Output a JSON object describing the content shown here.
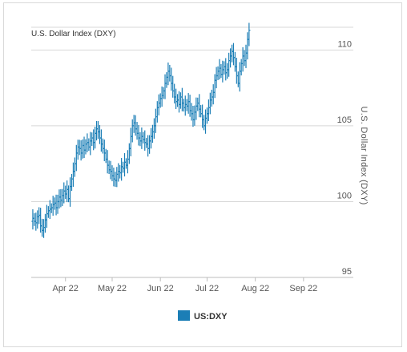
{
  "chart_data": {
    "type": "ohlc",
    "title": "U.S. Dollar Index (DXY)",
    "ylabel": "U.S. Dollar Index (DXY)",
    "xlabel": "",
    "ylim": [
      95,
      111.5
    ],
    "y_ticks": [
      95,
      100,
      105,
      110
    ],
    "x_ticks": [
      {
        "label": "Apr 22",
        "day": 22
      },
      {
        "label": "May 22",
        "day": 52
      },
      {
        "label": "Jun 22",
        "day": 83
      },
      {
        "label": "Jul 22",
        "day": 113
      },
      {
        "label": "Aug 22",
        "day": 144
      },
      {
        "label": "Sep 22",
        "day": 175
      }
    ],
    "x_range": [
      0,
      207
    ],
    "color": "#1b7eb6",
    "legend": {
      "label": "US:DXY",
      "position": "bottom-center"
    },
    "grid": true,
    "series": [
      {
        "name": "US:DXY",
        "points": [
          [
            1,
            98.9
          ],
          [
            2,
            98.7
          ],
          [
            3,
            98.6
          ],
          [
            4,
            99.0
          ],
          [
            5,
            99.1
          ],
          [
            6,
            98.4
          ],
          [
            7,
            98.1
          ],
          [
            8,
            98.3
          ],
          [
            9,
            98.8
          ],
          [
            10,
            99.2
          ],
          [
            11,
            99.4
          ],
          [
            12,
            99.5
          ],
          [
            13,
            99.6
          ],
          [
            14,
            99.8
          ],
          [
            15,
            99.9
          ],
          [
            16,
            99.6
          ],
          [
            17,
            100.0
          ],
          [
            18,
            100.3
          ],
          [
            19,
            100.1
          ],
          [
            20,
            100.4
          ],
          [
            21,
            100.7
          ],
          [
            22,
            100.5
          ],
          [
            23,
            100.8
          ],
          [
            24,
            100.2
          ],
          [
            25,
            101.0
          ],
          [
            26,
            101.5
          ],
          [
            27,
            102.0
          ],
          [
            28,
            102.5
          ],
          [
            29,
            103.2
          ],
          [
            30,
            103.6
          ],
          [
            31,
            103.5
          ],
          [
            32,
            103.2
          ],
          [
            33,
            103.7
          ],
          [
            34,
            103.4
          ],
          [
            35,
            103.8
          ],
          [
            36,
            103.9
          ],
          [
            37,
            103.6
          ],
          [
            38,
            104.0
          ],
          [
            39,
            104.2
          ],
          [
            40,
            103.9
          ],
          [
            41,
            104.5
          ],
          [
            42,
            104.8
          ],
          [
            43,
            104.6
          ],
          [
            44,
            104.2
          ],
          [
            45,
            103.8
          ],
          [
            46,
            103.5
          ],
          [
            47,
            103.2
          ],
          [
            48,
            102.8
          ],
          [
            49,
            102.4
          ],
          [
            50,
            102.1
          ],
          [
            51,
            102.0
          ],
          [
            52,
            101.7
          ],
          [
            53,
            101.5
          ],
          [
            54,
            101.4
          ],
          [
            55,
            101.8
          ],
          [
            56,
            102.0
          ],
          [
            57,
            101.9
          ],
          [
            58,
            102.3
          ],
          [
            59,
            102.2
          ],
          [
            60,
            102.6
          ],
          [
            61,
            102.4
          ],
          [
            62,
            102.8
          ],
          [
            63,
            103.5
          ],
          [
            64,
            104.3
          ],
          [
            65,
            105.0
          ],
          [
            66,
            105.2
          ],
          [
            67,
            104.8
          ],
          [
            68,
            104.5
          ],
          [
            69,
            104.2
          ],
          [
            70,
            104.0
          ],
          [
            71,
            104.3
          ],
          [
            72,
            104.1
          ],
          [
            73,
            103.9
          ],
          [
            74,
            103.8
          ],
          [
            75,
            103.5
          ],
          [
            76,
            104.0
          ],
          [
            77,
            104.3
          ],
          [
            78,
            104.6
          ],
          [
            79,
            105.0
          ],
          [
            80,
            105.6
          ],
          [
            81,
            106.2
          ],
          [
            82,
            106.5
          ],
          [
            83,
            106.8
          ],
          [
            84,
            107.0
          ],
          [
            85,
            107.3
          ],
          [
            86,
            107.8
          ],
          [
            87,
            108.2
          ],
          [
            88,
            108.6
          ],
          [
            89,
            108.3
          ],
          [
            90,
            107.8
          ],
          [
            91,
            107.3
          ],
          [
            92,
            106.9
          ],
          [
            93,
            106.6
          ],
          [
            94,
            106.7
          ],
          [
            95,
            106.4
          ],
          [
            96,
            106.9
          ],
          [
            97,
            106.5
          ],
          [
            98,
            106.2
          ],
          [
            99,
            106.4
          ],
          [
            100,
            106.3
          ],
          [
            101,
            106.6
          ],
          [
            102,
            106.0
          ],
          [
            103,
            105.8
          ],
          [
            104,
            105.4
          ],
          [
            105,
            105.9
          ],
          [
            106,
            106.3
          ],
          [
            107,
            106.5
          ],
          [
            108,
            106.1
          ],
          [
            109,
            105.8
          ],
          [
            110,
            105.4
          ],
          [
            111,
            105.0
          ],
          [
            112,
            105.5
          ],
          [
            113,
            105.8
          ],
          [
            114,
            106.2
          ],
          [
            115,
            106.7
          ],
          [
            116,
            106.9
          ],
          [
            117,
            107.2
          ],
          [
            118,
            108.0
          ],
          [
            119,
            108.3
          ],
          [
            120,
            108.6
          ],
          [
            121,
            108.8
          ],
          [
            122,
            108.4
          ],
          [
            123,
            108.7
          ],
          [
            124,
            108.9
          ],
          [
            125,
            108.5
          ],
          [
            126,
            108.7
          ],
          [
            127,
            109.3
          ],
          [
            128,
            109.6
          ],
          [
            129,
            109.9
          ],
          [
            130,
            109.5
          ],
          [
            131,
            108.9
          ],
          [
            132,
            108.3
          ],
          [
            133,
            107.8
          ],
          [
            134,
            108.6
          ],
          [
            135,
            109.1
          ],
          [
            136,
            109.6
          ],
          [
            137,
            109.3
          ],
          [
            138,
            109.8
          ],
          [
            139,
            110.7
          ],
          [
            140,
            111.3
          ]
        ]
      }
    ]
  }
}
